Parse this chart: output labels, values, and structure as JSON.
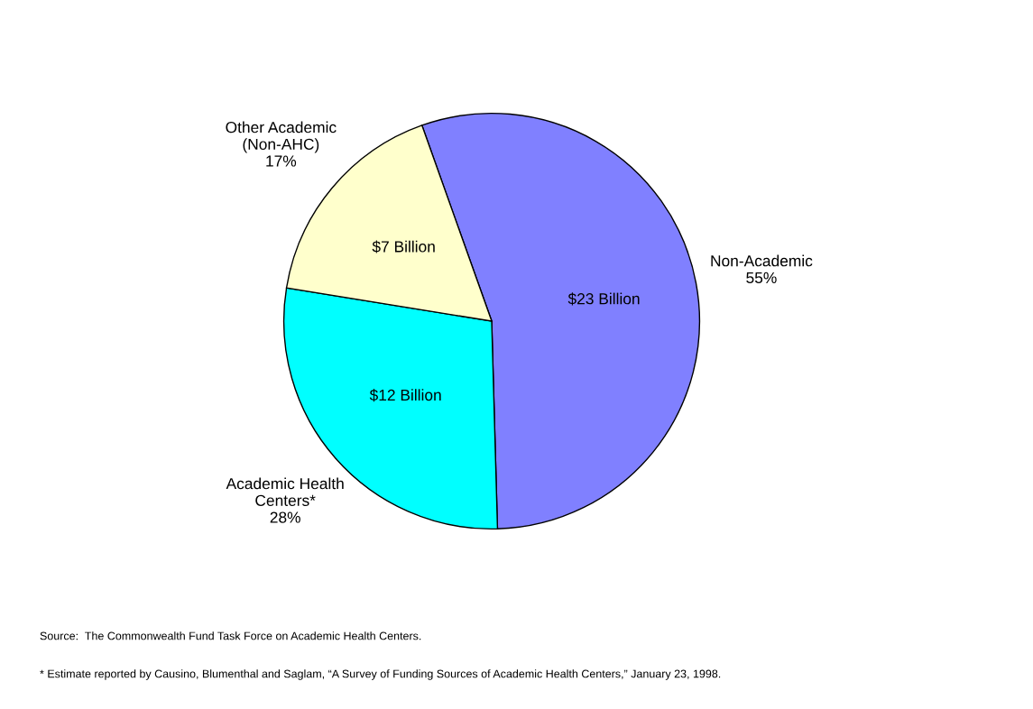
{
  "chart_data": {
    "type": "pie",
    "categories": [
      "Non-Academic",
      "Academic Health\nCenters*",
      "Other Academic\n(Non-AHC)"
    ],
    "values": [
      55,
      28,
      17
    ],
    "value_labels": [
      "55%",
      "28%",
      "17%"
    ],
    "colors": [
      "#8080ff",
      "#00ffff",
      "#ffffcc"
    ],
    "annotations": [
      {
        "text": "$23 Billion",
        "x": "Non-Academic"
      },
      {
        "text": "$12 Billion",
        "x": "Academic Health\nCenters*"
      },
      {
        "text": "$7 Billion",
        "x": "Other Academic\n(Non-AHC)"
      },
      "Source:  The Commonwealth Fund Task Force on Academic Health Centers.",
      "* Estimate reported by Causino, Blumenthal and Saglam, “A Survey of Funding Sources of Academic Health Centers,” January 23, 1998."
    ]
  }
}
